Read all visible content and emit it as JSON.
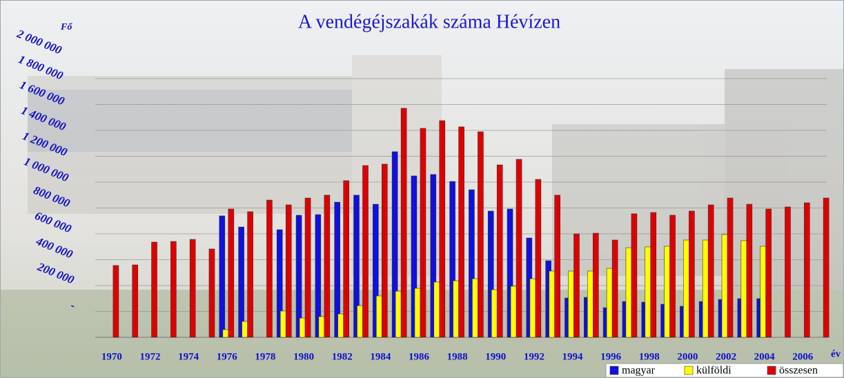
{
  "chart_data": {
    "type": "bar",
    "title": "A vendégéjszakák száma Hévízen",
    "y_label": "Fő",
    "x_label": "év",
    "categories": [
      1970,
      null,
      1972,
      null,
      1974,
      null,
      1976,
      null,
      1978,
      null,
      1980,
      null,
      1982,
      null,
      1984,
      null,
      1986,
      null,
      1988,
      null,
      1990,
      null,
      1992,
      null,
      1994,
      null,
      1996,
      null,
      1998,
      null,
      2000,
      null,
      2002,
      null,
      2004,
      null,
      2006,
      null
    ],
    "series": [
      {
        "name": "magyar",
        "color": "#1010e0",
        "values": [
          null,
          null,
          null,
          null,
          null,
          null,
          939000,
          853000,
          null,
          832000,
          944000,
          949000,
          1045000,
          1099000,
          1029000,
          1435000,
          1248000,
          1259000,
          1205000,
          1141000,
          976000,
          992000,
          768000,
          592000,
          304000,
          309000,
          229000,
          277000,
          272000,
          256000,
          240000,
          277000,
          293000,
          299000,
          299000,
          null,
          null,
          null
        ]
      },
      {
        "name": "külföldi",
        "color": "#ffff00",
        "values": [
          null,
          null,
          null,
          null,
          null,
          null,
          59000,
          123000,
          null,
          203000,
          149000,
          160000,
          181000,
          245000,
          320000,
          357000,
          379000,
          427000,
          437000,
          453000,
          368000,
          395000,
          453000,
          512000,
          512000,
          512000,
          533000,
          693000,
          699000,
          704000,
          752000,
          752000,
          795000,
          747000,
          704000,
          null,
          null,
          null
        ]
      },
      {
        "name": "összesen",
        "color": "#e00000",
        "values": [
          555000,
          560000,
          736000,
          741000,
          757000,
          683000,
          992000,
          971000,
          1061000,
          1024000,
          1077000,
          1099000,
          1211000,
          1328000,
          1339000,
          1771000,
          1616000,
          1675000,
          1627000,
          1589000,
          1333000,
          1376000,
          1221000,
          1099000,
          800000,
          805000,
          752000,
          955000,
          965000,
          944000,
          976000,
          1024000,
          1077000,
          1029000,
          992000,
          1008000,
          1040000,
          1077000
        ]
      }
    ],
    "ylim": [
      0,
      2000000
    ],
    "yticks": [
      {
        "value": 0,
        "label": "-"
      },
      {
        "value": 200000,
        "label": "200 000"
      },
      {
        "value": 400000,
        "label": "400 000"
      },
      {
        "value": 600000,
        "label": "600 000"
      },
      {
        "value": 800000,
        "label": "800 000"
      },
      {
        "value": 1000000,
        "label": "1 000 000"
      },
      {
        "value": 1200000,
        "label": "1 200 000"
      },
      {
        "value": 1400000,
        "label": "1 400 000"
      },
      {
        "value": 1600000,
        "label": "1 600 000"
      },
      {
        "value": 1800000,
        "label": "1 800 000"
      },
      {
        "value": 2000000,
        "label": "2 000 000"
      }
    ],
    "grid": true,
    "legend": "bottom-right"
  }
}
